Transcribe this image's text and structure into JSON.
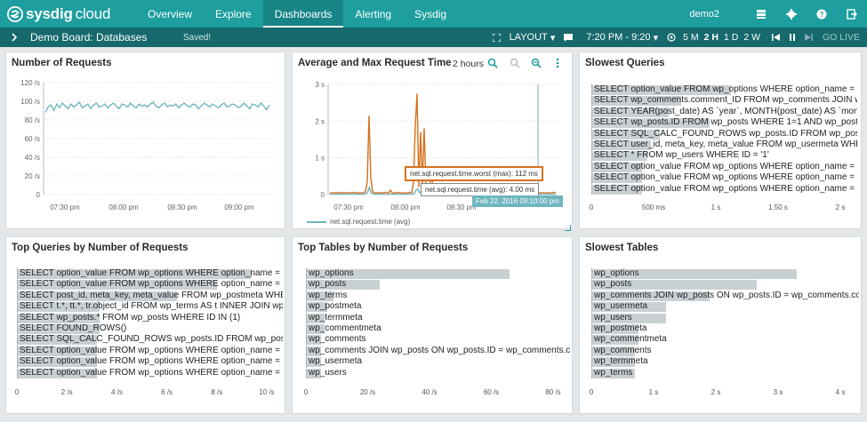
{
  "app": {
    "brand": "sysdig",
    "brand_suffix": "cloud"
  },
  "nav": {
    "items": [
      {
        "label": "Overview"
      },
      {
        "label": "Explore"
      },
      {
        "label": "Dashboards"
      },
      {
        "label": "Alerting"
      },
      {
        "label": "Sysdig"
      }
    ],
    "active": "Dashboards",
    "user": "demo2"
  },
  "subnav": {
    "board_title": "Demo Board: Databases",
    "saved": "Saved!",
    "layout_label": "LAYOUT",
    "time_range": "7:20 PM - 9:20",
    "time_buttons": [
      "5 M",
      "2 H",
      "1 D",
      "2 W"
    ],
    "time_selected": "2 H",
    "golive": "GO LIVE"
  },
  "panels": {
    "requests": {
      "title": "Number of Requests",
      "chart_data": {
        "type": "line",
        "yticks": [
          "0",
          "20 /s",
          "40 /s",
          "60 /s",
          "80 /s",
          "100 /s",
          "120 /s"
        ],
        "xticks": [
          "07:30 pm",
          "08:00 pm",
          "08:30 pm",
          "09:00 pm"
        ],
        "ylim": [
          0,
          120
        ],
        "values": [
          88,
          94,
          96,
          90,
          97,
          93,
          98,
          95,
          92,
          97,
          94,
          96,
          99,
          93,
          95,
          97,
          92,
          96,
          98,
          94,
          95,
          97,
          93,
          96,
          98,
          95,
          92,
          97,
          96,
          94,
          98,
          95,
          93,
          97,
          95,
          96,
          94,
          97,
          99,
          95,
          93,
          96,
          98,
          94,
          96,
          95,
          97,
          93,
          96,
          98,
          95,
          94,
          97,
          96,
          92,
          95,
          98,
          96,
          94,
          97,
          95,
          93,
          96,
          98,
          94,
          95,
          97,
          96,
          93,
          95,
          98,
          95,
          92,
          97,
          96,
          94,
          98,
          95,
          91,
          96
        ]
      }
    },
    "avgmax": {
      "title": "Average and Max Request Time",
      "range": "2 hours",
      "chart_data": {
        "type": "line",
        "yticks": [
          "0",
          "1 s",
          "2 s",
          "3 s"
        ],
        "xticks": [
          "07:30 pm",
          "08:00 pm",
          "08:30 pm"
        ],
        "ylim": [
          0,
          3
        ],
        "series": [
          {
            "name": "net.sql.request.time.worst (max)",
            "values": [
              0.05,
              0.04,
              0.05,
              0.05,
              0.04,
              0.06,
              0.05,
              0.04,
              0.05,
              0.05,
              0.04,
              0.05,
              0.05,
              0.06,
              0.05,
              0.04,
              0.05,
              0.05,
              0.04,
              0.05,
              0.08,
              0.35,
              2.15,
              0.45,
              0.08,
              0.05,
              0.04,
              0.05,
              0.05,
              0.04,
              0.05,
              0.06,
              0.05,
              0.04,
              0.12,
              0.05,
              0.04,
              0.05,
              0.06,
              0.05,
              0.04,
              0.05,
              0.05,
              0.04,
              0.05,
              0.06,
              0.05,
              0.35,
              1.85,
              2.75,
              0.2,
              1.7,
              0.25,
              1.8,
              0.3,
              0.15,
              0.08,
              0.7,
              0.1,
              0.06,
              0.05,
              0.04,
              0.05,
              0.05,
              0.04,
              0.06,
              0.05,
              0.04,
              0.05,
              0.05,
              0.04,
              0.05,
              0.06,
              0.05,
              0.04,
              0.05,
              0.05,
              0.04,
              0.05,
              0.06,
              0.05,
              0.04,
              0.05,
              0.05,
              0.04,
              0.05,
              0.05,
              0.06,
              0.05,
              0.04,
              0.05,
              0.05,
              0.04,
              0.05,
              0.05,
              0.04,
              0.05,
              0.06,
              0.05,
              0.04,
              0.06,
              0.05,
              0.04,
              0.05,
              0.05,
              0.04,
              0.06,
              0.05,
              0.04,
              0.05,
              0.05,
              0.04,
              0.05,
              0.06,
              0.05,
              0.04,
              0.05,
              0.05,
              0.04,
              0.05,
              0.05,
              0.04,
              0.05,
              0.05,
              0.04,
              0.05,
              0.06,
              0.05
            ]
          },
          {
            "name": "net.sql.request.time (avg)",
            "values": [
              0.01,
              0.01,
              0.01,
              0.01,
              0.01,
              0.01,
              0.01,
              0.01,
              0.01,
              0.01,
              0.01,
              0.01,
              0.01,
              0.01,
              0.01,
              0.01,
              0.01,
              0.01,
              0.01,
              0.01,
              0.02,
              0.05,
              0.2,
              0.05,
              0.02,
              0.01,
              0.01,
              0.01,
              0.01,
              0.01,
              0.01,
              0.01,
              0.01,
              0.01,
              0.02,
              0.01,
              0.01,
              0.01,
              0.01,
              0.01,
              0.01,
              0.01,
              0.01,
              0.01,
              0.01,
              0.01,
              0.01,
              0.03,
              0.12,
              0.15,
              0.05,
              0.1,
              0.05,
              0.1,
              0.03,
              0.02,
              0.01,
              0.04,
              0.01,
              0.01,
              0.01,
              0.01,
              0.01,
              0.01,
              0.01,
              0.01,
              0.01,
              0.01,
              0.01,
              0.01,
              0.01,
              0.01,
              0.01,
              0.01,
              0.01,
              0.01,
              0.01,
              0.01,
              0.01,
              0.01,
              0.01,
              0.01,
              0.01,
              0.01,
              0.01,
              0.01,
              0.01,
              0.01,
              0.01,
              0.01,
              0.01,
              0.01,
              0.01,
              0.01,
              0.01,
              0.01,
              0.01,
              0.01,
              0.01,
              0.01,
              0.01,
              0.01,
              0.01,
              0.01,
              0.01,
              0.01,
              0.01,
              0.01,
              0.01,
              0.01,
              0.01,
              0.01,
              0.01,
              0.01,
              0.01,
              0.01,
              0.01,
              0.01,
              0.01,
              0.01,
              0.01,
              0.01,
              0.01,
              0.01,
              0.01,
              0.01,
              0.01
            ]
          }
        ]
      },
      "tooltip_max": "net.sql.request.time.worst (max): 112 ms",
      "tooltip_avg": "net.sql.request.time (avg): 4.00 ms",
      "tooltip_time": "Feb 22, 2016 09:10:00 pm",
      "legend": "net.sql.request.time (avg)"
    },
    "slowq": {
      "title": "Slowest Queries",
      "chart_data": {
        "type": "bar",
        "categories": [
          "SELECT option_value FROM wp_options WHERE option_name = 'them",
          "SELECT wp_comments.comment_ID FROM wp_comments JOIN wp_pos",
          "SELECT YEAR(post_date) AS `year`, MONTH(post_date) AS `month`,",
          "SELECT wp_posts.ID FROM wp_posts WHERE 1=1 AND wp_posts.post",
          "SELECT SQL_CALC_FOUND_ROWS wp_posts.ID FROM wp_posts WHERE",
          "SELECT user_id, meta_key, meta_value FROM wp_usermeta WHERE us",
          "SELECT * FROM wp_users WHERE ID = '1'",
          "SELECT option_value FROM wp_options WHERE option_name = 'curre",
          "SELECT option_value FROM wp_options WHERE option_name = 'rewri",
          "SELECT option_value FROM wp_options WHERE option_name = 'mods"
        ],
        "values": [
          1.12,
          0.72,
          0.62,
          0.95,
          0.55,
          0.48,
          0.45,
          0.41,
          0.41,
          0.41
        ],
        "xticks": [
          "0",
          "500 ms",
          "1 s",
          "1.50 s",
          "2 s"
        ],
        "xlim": [
          0,
          2
        ]
      }
    },
    "topq": {
      "title": "Top Queries by Number of Requests",
      "chart_data": {
        "type": "bar",
        "categories": [
          "SELECT option_value FROM wp_options WHERE option_name = 'mods",
          "SELECT option_value FROM wp_options WHERE option_name = 'curre",
          "SELECT post_id, meta_key, meta_value FROM wp_postmeta WHERE po",
          "SELECT t.*, tt.*, tr.object_id FROM wp_terms AS t INNER JOIN wp_term",
          "SELECT wp_posts.* FROM wp_posts WHERE ID IN (1)",
          "SELECT FOUND_ROWS()",
          "SELECT SQL_CALC_FOUND_ROWS wp_posts.ID FROM wp_posts WHER",
          "SELECT option_value FROM wp_options WHERE option_name = 'rewri",
          "SELECT option_value FROM wp_options WHERE option_name = 'cron'",
          "SELECT option_value FROM wp_options WHERE option_name = 'them"
        ],
        "values": [
          9.4,
          8.0,
          6.4,
          3.3,
          3.3,
          3.3,
          3.2,
          3.2,
          3.2,
          3.2
        ],
        "xticks": [
          "0",
          "2 /s",
          "4 /s",
          "6 /s",
          "8 /s",
          "10 /s"
        ],
        "xlim": [
          0,
          10
        ]
      }
    },
    "toptables": {
      "title": "Top Tables by Number of Requests",
      "chart_data": {
        "type": "bar",
        "categories": [
          "wp_options",
          "wp_posts",
          "wp_terms",
          "wp_postmeta",
          "wp_termmeta",
          "wp_commentmeta",
          "wp_comments",
          "wp_comments JOIN wp_posts ON wp_posts.ID = wp_comments.comm",
          "wp_usermeta",
          "wp_users"
        ],
        "values": [
          66,
          24,
          9,
          7,
          6,
          6,
          5,
          5,
          5,
          5
        ],
        "xticks": [
          "0",
          "20 /s",
          "40 /s",
          "60 /s",
          "80 /s"
        ],
        "xlim": [
          0,
          80
        ]
      }
    },
    "slowtables": {
      "title": "Slowest Tables",
      "chart_data": {
        "type": "bar",
        "categories": [
          "wp_options",
          "wp_posts",
          "wp_comments JOIN wp_posts ON wp_posts.ID = wp_comments.comm",
          "wp_usermeta",
          "wp_users",
          "wp_postmeta",
          "wp_commentmeta",
          "wp_comments",
          "wp_termmeta",
          "wp_terms"
        ],
        "values": [
          3.3,
          2.65,
          1.9,
          1.2,
          1.2,
          0.75,
          0.75,
          0.7,
          0.7,
          0.7
        ],
        "xticks": [
          "0",
          "1 s",
          "2 s",
          "3 s",
          "4 s"
        ],
        "xlim": [
          0,
          4
        ]
      }
    }
  },
  "colors": {
    "teal": "#1e9e9e",
    "teal_dark": "#16696c",
    "orange": "#d4711f",
    "line_teal": "#6fb6bf",
    "bar": "#c9d0d3"
  }
}
